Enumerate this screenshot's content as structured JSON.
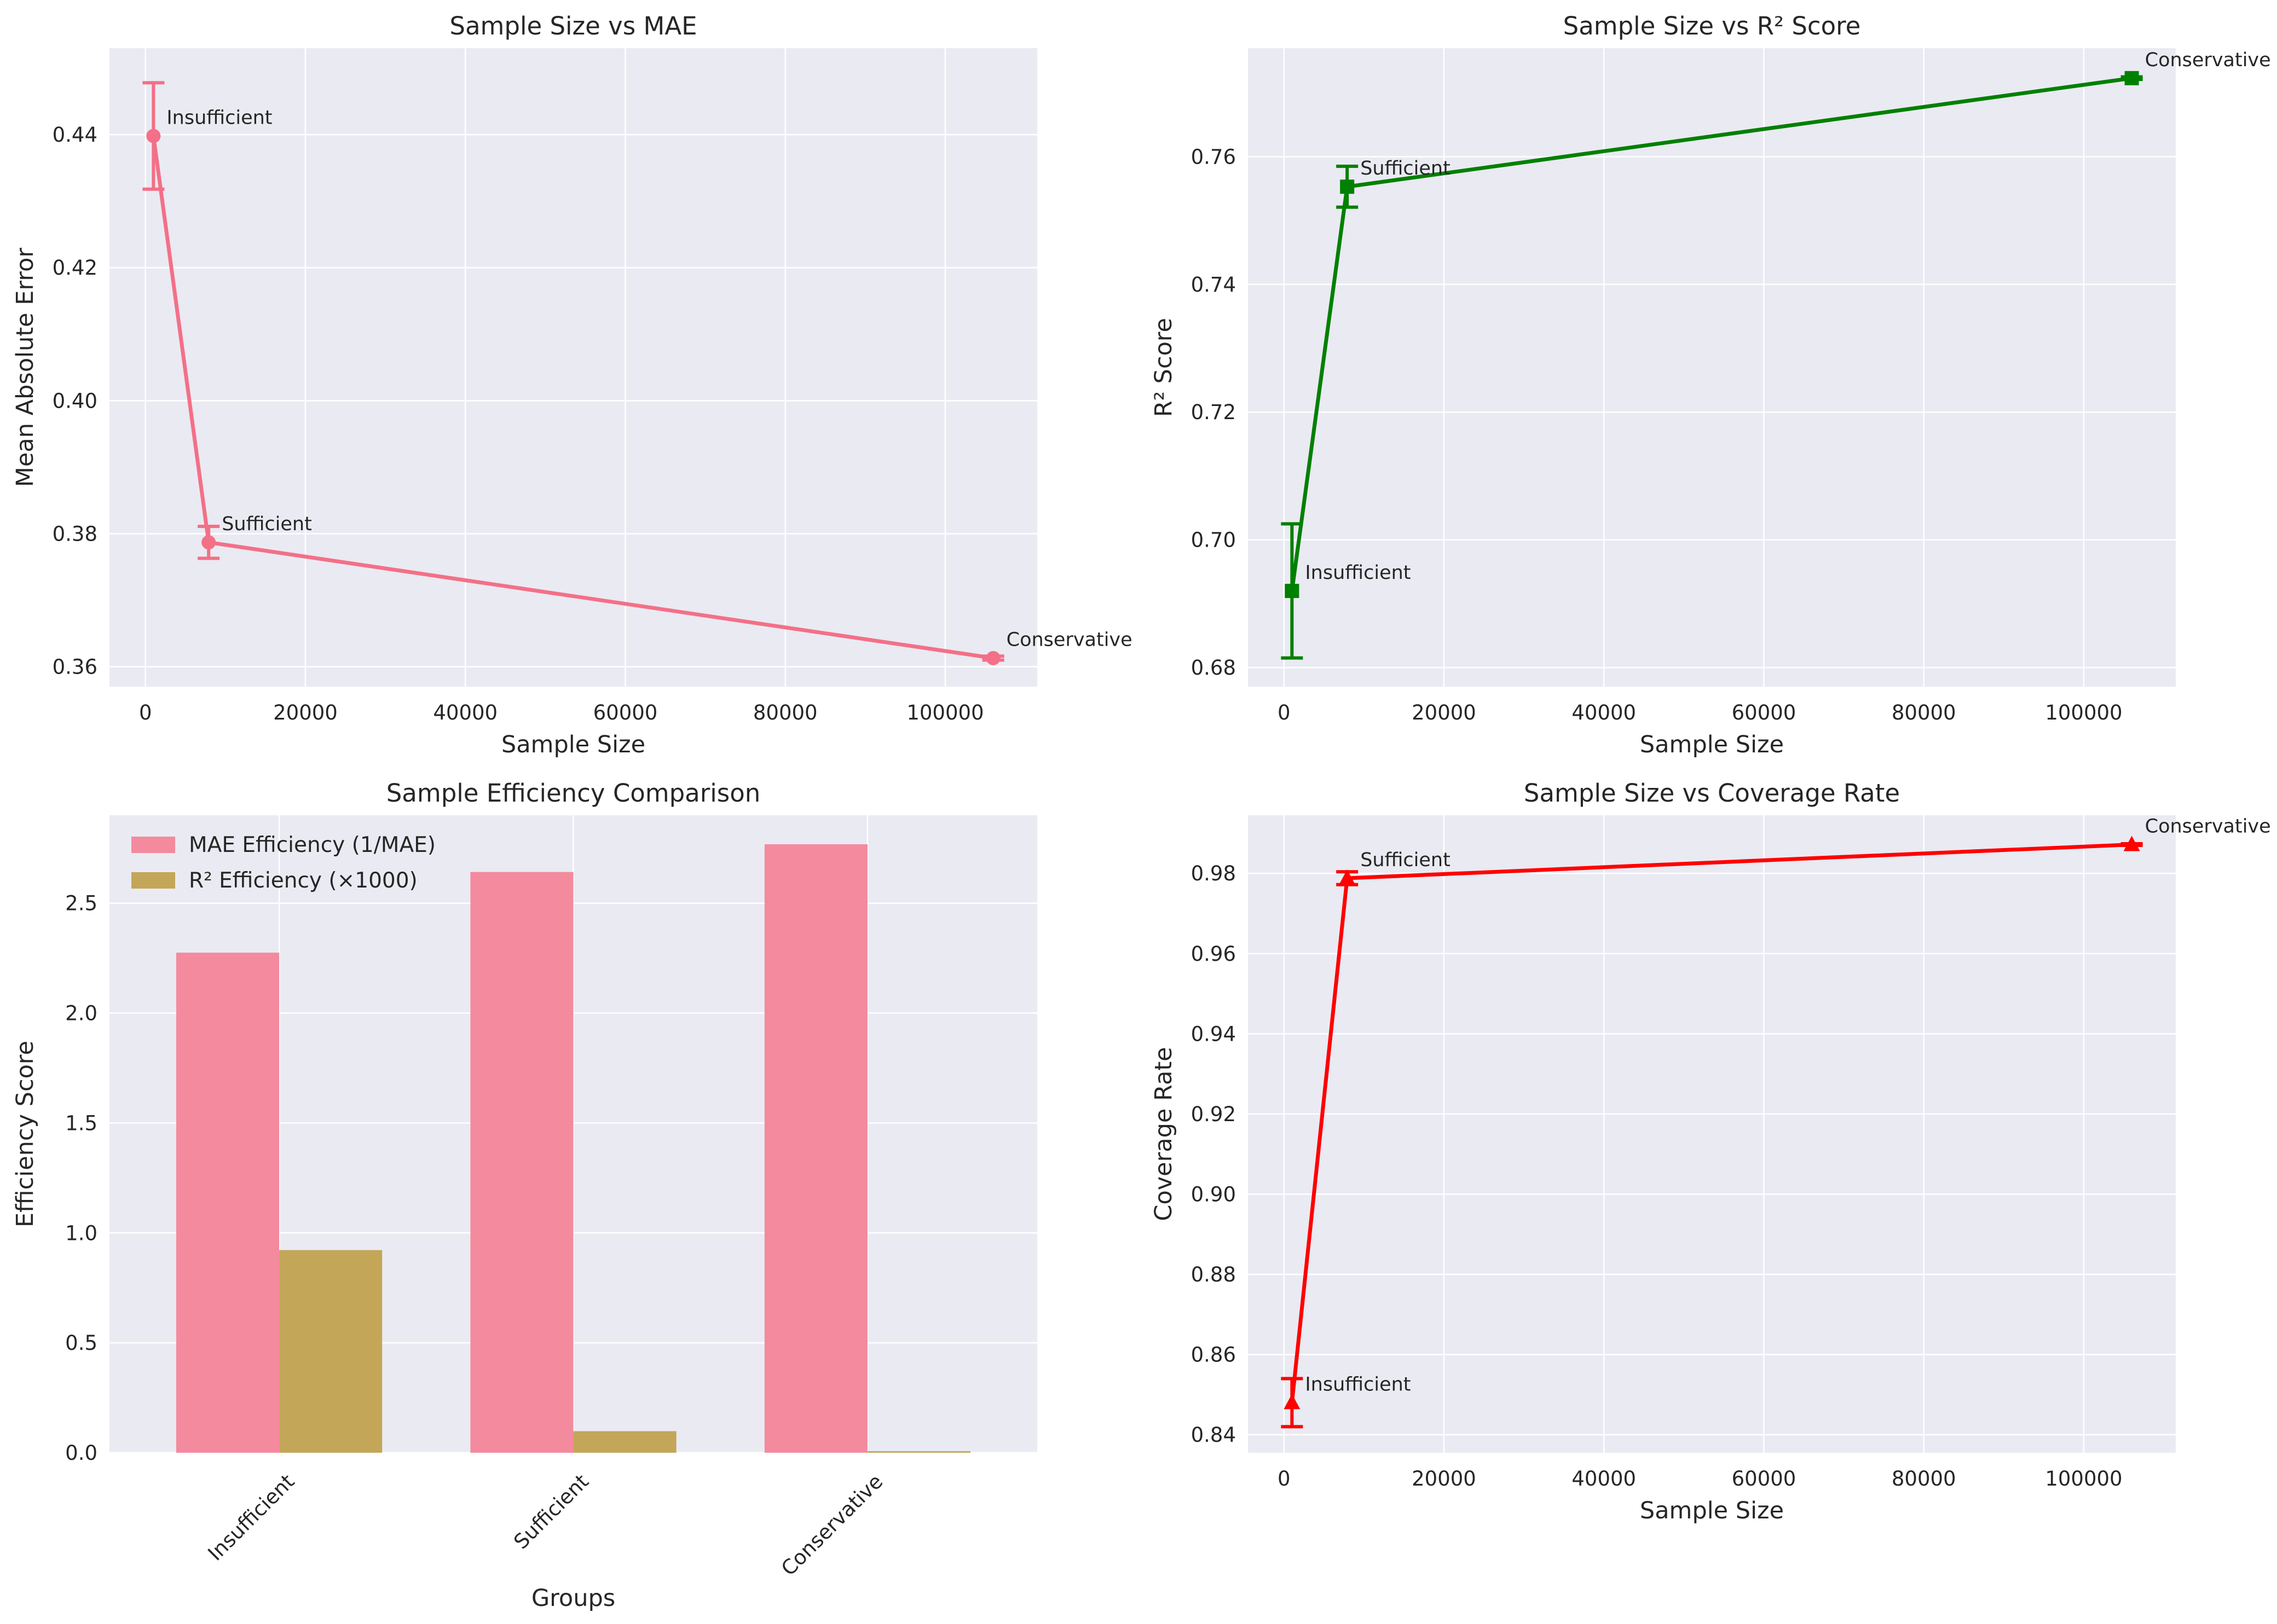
{
  "chart_data": [
    {
      "type": "line",
      "title": "Sample Size vs MAE",
      "xlabel": "Sample Size",
      "ylabel": "Mean Absolute Error",
      "xlim": [
        -4500,
        111500
      ],
      "ylim": [
        0.357,
        0.453
      ],
      "xticks": [
        "0",
        "20000",
        "40000",
        "60000",
        "80000",
        "100000"
      ],
      "xtick_values": [
        0,
        20000,
        40000,
        60000,
        80000,
        100000
      ],
      "yticks": [
        "0.36",
        "0.38",
        "0.40",
        "0.42",
        "0.44"
      ],
      "ytick_values": [
        0.36,
        0.38,
        0.4,
        0.42,
        0.44
      ],
      "color": "#f37087",
      "marker": "circle",
      "points": [
        {
          "label": "Insufficient",
          "x": 1000,
          "y": 0.4398,
          "err": 0.008
        },
        {
          "label": "Sufficient",
          "x": 7900,
          "y": 0.3787,
          "err": 0.0024
        },
        {
          "label": "Conservative",
          "x": 106000,
          "y": 0.3613,
          "err": 0.0003
        }
      ]
    },
    {
      "type": "line",
      "title": "Sample Size vs R² Score",
      "xlabel": "Sample Size",
      "ylabel": "R² Score",
      "xlim": [
        -4500,
        111500
      ],
      "ylim": [
        0.677,
        0.777
      ],
      "xticks": [
        "0",
        "20000",
        "40000",
        "60000",
        "80000",
        "100000"
      ],
      "xtick_values": [
        0,
        20000,
        40000,
        60000,
        80000,
        100000
      ],
      "yticks": [
        "0.68",
        "0.70",
        "0.72",
        "0.74",
        "0.76"
      ],
      "ytick_values": [
        0.68,
        0.7,
        0.72,
        0.74,
        0.76
      ],
      "color": "#008000",
      "marker": "square",
      "points": [
        {
          "label": "Insufficient",
          "x": 1000,
          "y": 0.692,
          "err": 0.0105
        },
        {
          "label": "Sufficient",
          "x": 7900,
          "y": 0.7553,
          "err": 0.0032
        },
        {
          "label": "Conservative",
          "x": 106000,
          "y": 0.7723,
          "err": 0.0002
        }
      ]
    },
    {
      "type": "bar",
      "title": "Sample Efficiency Comparison",
      "xlabel": "Groups",
      "ylabel": "Efficiency Score",
      "ylim": [
        0,
        2.9
      ],
      "categories": [
        "Insufficient",
        "Sufficient",
        "Conservative"
      ],
      "yticks": [
        "0.0",
        "0.5",
        "1.0",
        "1.5",
        "2.0",
        "2.5"
      ],
      "ytick_values": [
        0,
        0.5,
        1.0,
        1.5,
        2.0,
        2.5
      ],
      "legend_position": "top-left",
      "series": [
        {
          "name": "MAE Efficiency (1/MAE)",
          "values": [
            2.275,
            2.642,
            2.768
          ],
          "color": "#f48a9d"
        },
        {
          "name": "R² Efficiency (×1000)",
          "values": [
            0.922,
            0.098,
            0.007
          ],
          "color": "#c4a658"
        }
      ]
    },
    {
      "type": "line",
      "title": "Sample Size vs Coverage Rate",
      "xlabel": "Sample Size",
      "ylabel": "Coverage Rate",
      "xlim": [
        -4500,
        111500
      ],
      "ylim": [
        0.8355,
        0.9945
      ],
      "xticks": [
        "0",
        "20000",
        "40000",
        "60000",
        "80000",
        "100000"
      ],
      "xtick_values": [
        0,
        20000,
        40000,
        60000,
        80000,
        100000
      ],
      "yticks": [
        "0.84",
        "0.86",
        "0.88",
        "0.90",
        "0.92",
        "0.94",
        "0.96",
        "0.98"
      ],
      "ytick_values": [
        0.84,
        0.86,
        0.88,
        0.9,
        0.92,
        0.94,
        0.96,
        0.98
      ],
      "color": "#ff0000",
      "marker": "triangle",
      "points": [
        {
          "label": "Insufficient",
          "x": 1000,
          "y": 0.848,
          "err": 0.006
        },
        {
          "label": "Sufficient",
          "x": 7900,
          "y": 0.9788,
          "err": 0.0016
        },
        {
          "label": "Conservative",
          "x": 106000,
          "y": 0.9872,
          "err": 0.0002
        }
      ]
    }
  ]
}
